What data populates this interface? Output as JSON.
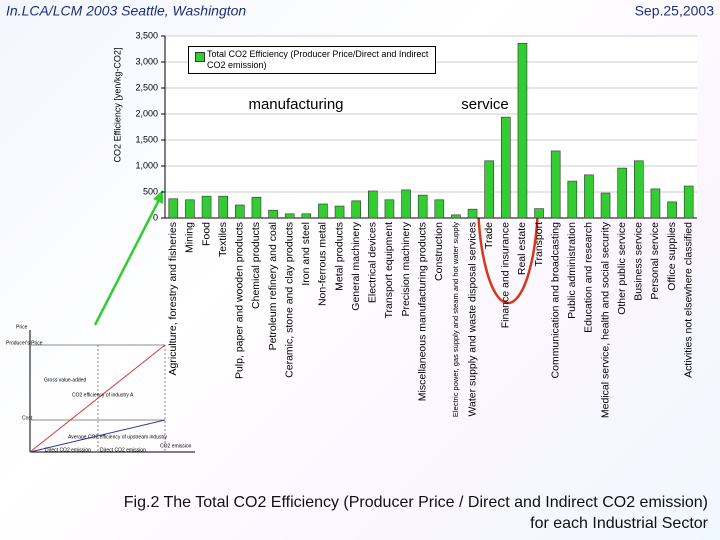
{
  "header": {
    "left": "In.LCA/LCM 2003  Seattle, Washington",
    "right": "Sep.25,2003"
  },
  "chart_data": {
    "type": "bar",
    "y_label": "CO2 Efficiency [yen/kg-CO2]",
    "categories": [
      "Agriculture, forestry and fisheries",
      "Mining",
      "Food",
      "Textiles",
      "Pulp, paper and wooden products",
      "Chemical products",
      "Petroleum refinery and coal",
      "Ceramic, stone and clay products",
      "Iron and steel",
      "Non-ferrous metal",
      "Metal products",
      "General machinery",
      "Electrical devices",
      "Transport equipment",
      "Precision machinery",
      "Miscellaneous manufacturing products",
      "Construction",
      "Electric power, gas supply and steam and hot water supply",
      "Water supply and waste disposal services",
      "Trade",
      "Finance and insurance",
      "Real estate",
      "Transport",
      "Communication and broadcasting",
      "Public administration",
      "Education and research",
      "Medical service, health and social security",
      "Other public service",
      "Business service",
      "Personal service",
      "Office supplies",
      "Activities not elsewhere classified"
    ],
    "series": [
      {
        "name": "Total CO2 Efficiency (Producer Price/Direct and Indirect CO2 emission)",
        "color": "#33cc33",
        "values": [
          370,
          350,
          420,
          420,
          250,
          400,
          150,
          80,
          80,
          270,
          230,
          330,
          520,
          350,
          540,
          440,
          350,
          60,
          170,
          1100,
          1940,
          3360,
          180,
          1290,
          710,
          830,
          480,
          960,
          1100,
          560,
          310,
          615
        ]
      }
    ],
    "ylim": [
      0,
      3500
    ],
    "yticks": [
      0,
      500,
      {
        "value": 1000,
        "label": "1,000"
      },
      {
        "value": 1500,
        "label": "1,500"
      },
      {
        "value": 2000,
        "label": "2,000"
      },
      {
        "value": 2500,
        "label": "2,500"
      },
      {
        "value": 3000,
        "label": "3,000"
      },
      {
        "value": 3500,
        "label": "3,500"
      }
    ],
    "grid": true,
    "annotations": [
      "manufacturing",
      "service"
    ]
  },
  "caption": [
    "Fig.2 The Total CO2 Efficiency (Producer Price / Direct and Indirect CO2 emission)",
    "for each Industrial Sector"
  ],
  "inset": {
    "labels": [
      "Price",
      "Producer's Price",
      "Gross value-added",
      "CO2 efficiency of industry A",
      "Cost",
      "Average CO2 efficiency of upstream industry",
      "Direct CO2 emission",
      "Direct CO2 emission",
      "CO2 emission"
    ]
  }
}
